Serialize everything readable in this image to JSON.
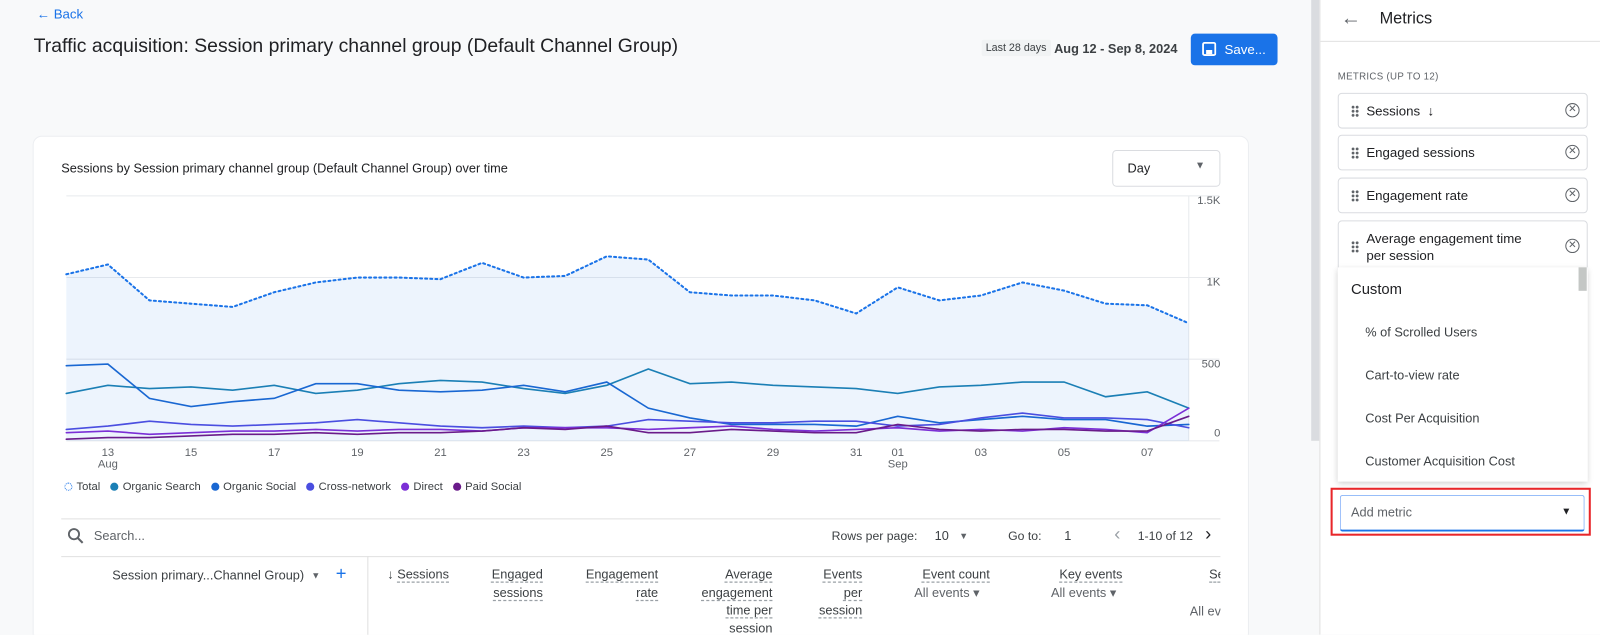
{
  "header": {
    "back": "Back",
    "title": "Traffic acquisition: Session primary channel group (Default Channel Group)",
    "date_badge": "Last 28 days",
    "date_range": "Aug 12 - Sep 8, 2024",
    "save": "Save..."
  },
  "chart_data": {
    "type": "line",
    "title": "Sessions by Session primary channel group (Default Channel Group) over time",
    "granularity": "Day",
    "categories": [
      null,
      "13",
      null,
      "15",
      null,
      "17",
      null,
      "19",
      null,
      "21",
      null,
      "23",
      null,
      "25",
      null,
      "27",
      null,
      "29",
      null,
      "31",
      "01",
      null,
      "03",
      null,
      "05",
      null,
      "07",
      null
    ],
    "months": [
      null,
      "Aug",
      null,
      null,
      null,
      null,
      null,
      null,
      null,
      null,
      null,
      null,
      null,
      null,
      null,
      null,
      null,
      null,
      null,
      null,
      "Sep",
      null,
      null,
      null,
      null,
      null,
      null,
      null
    ],
    "ylim": [
      0,
      1500
    ],
    "yticks": [
      0,
      500,
      {
        "value": 1000,
        "label": "1K"
      },
      {
        "value": 1500,
        "label": "1.5K"
      }
    ],
    "grid": true,
    "series": [
      {
        "name": "Total",
        "color": "#1a73e8",
        "values": [
          1020,
          1080,
          860,
          840,
          820,
          910,
          970,
          1000,
          1000,
          990,
          1090,
          1000,
          1010,
          1130,
          1110,
          910,
          890,
          890,
          860,
          780,
          940,
          860,
          890,
          970,
          920,
          840,
          830,
          720
        ]
      },
      {
        "name": "Organic Search",
        "color": "#1b7fb5",
        "values": [
          290,
          340,
          320,
          330,
          310,
          340,
          290,
          310,
          350,
          370,
          360,
          320,
          290,
          340,
          440,
          350,
          360,
          340,
          330,
          320,
          290,
          330,
          340,
          360,
          360,
          270,
          300,
          200
        ]
      },
      {
        "name": "Organic Social",
        "color": "#1967d2",
        "values": [
          460,
          470,
          260,
          210,
          240,
          260,
          350,
          350,
          310,
          300,
          310,
          340,
          300,
          360,
          200,
          140,
          100,
          100,
          100,
          90,
          150,
          110,
          130,
          150,
          130,
          130,
          90,
          100
        ]
      },
      {
        "name": "Cross-network",
        "color": "#4a4ee0",
        "values": [
          70,
          90,
          120,
          100,
          90,
          100,
          110,
          130,
          110,
          90,
          80,
          90,
          80,
          90,
          130,
          120,
          110,
          110,
          120,
          120,
          90,
          100,
          140,
          170,
          140,
          140,
          130,
          80
        ]
      },
      {
        "name": "Direct",
        "color": "#7b2fd6",
        "values": [
          50,
          60,
          40,
          50,
          60,
          60,
          70,
          60,
          70,
          70,
          60,
          80,
          80,
          80,
          70,
          80,
          90,
          70,
          60,
          70,
          80,
          60,
          70,
          60,
          80,
          70,
          50,
          200
        ]
      },
      {
        "name": "Paid Social",
        "color": "#6a1b8a",
        "values": [
          10,
          20,
          20,
          30,
          40,
          40,
          50,
          40,
          50,
          50,
          60,
          80,
          70,
          90,
          50,
          50,
          70,
          60,
          50,
          50,
          100,
          70,
          60,
          70,
          70,
          60,
          60,
          150
        ]
      }
    ]
  },
  "table": {
    "search": "Search...",
    "rows_per_page_label": "Rows per page:",
    "rows_per_page": 10,
    "goto_label": "Go to:",
    "goto": 1,
    "pagination": "1-10 of 12",
    "dimension": "Session primary...Channel Group)",
    "columns": [
      {
        "label": "Sessions"
      },
      {
        "label": "Engaged sessions"
      },
      {
        "label": "Engagement rate"
      },
      {
        "label": "Average engagement time per session"
      },
      {
        "label": "Events per session"
      },
      {
        "label": "Event count",
        "sub": "All events"
      },
      {
        "label": "Key events",
        "sub": "All events"
      },
      {
        "label": "Se",
        "sub": "All ev"
      }
    ]
  },
  "panel": {
    "title": "Metrics",
    "section": "METRICS (UP TO 12)",
    "metrics": [
      "Sessions",
      "Engaged sessions",
      "Engagement rate",
      "Average engagement time per session"
    ],
    "group": "Custom",
    "options": [
      "% of Scrolled Users",
      "Cart-to-view rate",
      "Cost Per Acquisition",
      "Customer Acquisition Cost"
    ],
    "add_metric": "Add metric"
  }
}
